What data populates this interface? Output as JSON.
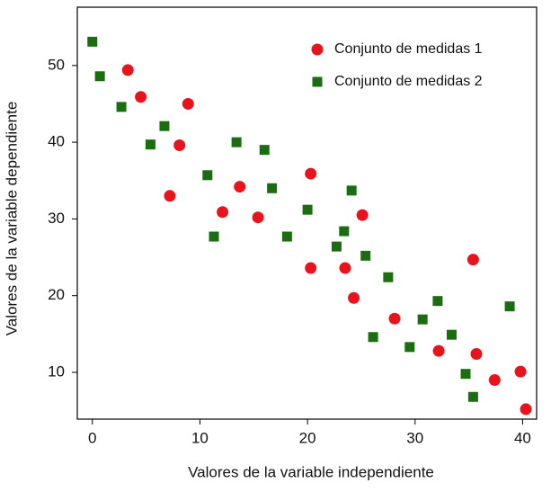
{
  "chart_data": {
    "type": "scatter",
    "xlabel": "Valores de la variable independiente",
    "ylabel": "Valores de la variable dependiente",
    "xlim": [
      -1.4,
      41.3
    ],
    "ylim": [
      3.9,
      57.6
    ],
    "xticks": [
      0,
      10,
      20,
      30,
      40
    ],
    "yticks": [
      10,
      20,
      30,
      40,
      50
    ],
    "legend": "upper right",
    "series": [
      {
        "name": "Conjunto de medidas 1",
        "color": "#e8141c",
        "marker": "circle",
        "x": [
          3.3,
          4.5,
          8.9,
          8.1,
          7.2,
          12.1,
          13.7,
          15.4,
          20.3,
          20.3,
          23.5,
          24.3,
          25.1,
          28.1,
          32.2,
          35.4,
          35.7,
          37.4,
          39.8,
          40.3
        ],
        "values": [
          49.4,
          45.9,
          45.0,
          39.6,
          33.0,
          30.9,
          34.2,
          30.2,
          35.9,
          23.6,
          23.6,
          19.7,
          30.5,
          17.0,
          12.8,
          24.7,
          12.4,
          9.0,
          10.1,
          5.2
        ]
      },
      {
        "name": "Conjunto de medidas 2",
        "color": "#1a6e0f",
        "marker": "square",
        "x": [
          0.0,
          0.7,
          2.7,
          5.4,
          6.7,
          10.7,
          11.3,
          13.4,
          16.0,
          16.7,
          18.1,
          20.0,
          22.7,
          23.4,
          24.1,
          25.4,
          26.1,
          27.5,
          29.5,
          30.7,
          32.1,
          33.4,
          34.7,
          35.4,
          38.8
        ],
        "values": [
          53.1,
          48.6,
          44.6,
          39.7,
          42.1,
          35.7,
          27.7,
          40.0,
          39.0,
          34.0,
          27.7,
          31.2,
          26.4,
          28.4,
          33.7,
          25.2,
          14.6,
          22.4,
          13.3,
          16.9,
          19.3,
          14.9,
          9.8,
          6.8,
          18.6
        ]
      }
    ]
  }
}
